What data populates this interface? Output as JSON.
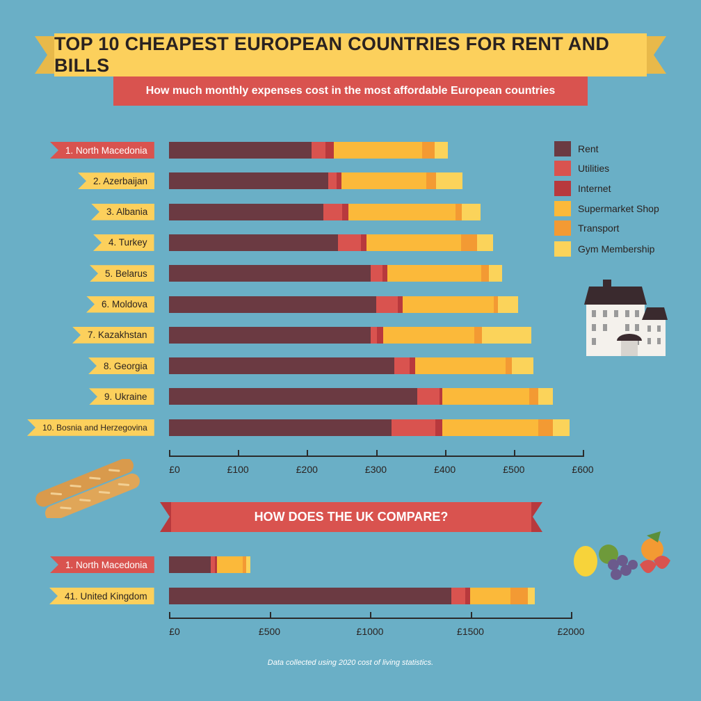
{
  "header": {
    "title": "TOP 10 CHEAPEST EUROPEAN COUNTRIES FOR RENT AND BILLS",
    "subtitle": "How much monthly expenses cost in the most affordable European countries"
  },
  "colors": {
    "background": "#6aafc6",
    "Rent": "#6b3a42",
    "Utilities": "#d9534f",
    "Internet": "#b8393d",
    "Supermarket Shop": "#fbb93a",
    "Transport": "#f39a33",
    "Gym Membership": "#fbd35a",
    "label_red": "#d9534f",
    "label_yellow": "#fcd05c"
  },
  "legend": {
    "position": "right",
    "items": [
      "Rent",
      "Utilities",
      "Internet",
      "Supermarket Shop",
      "Transport",
      "Gym Membership"
    ]
  },
  "section2": {
    "title": "HOW DOES THE UK COMPARE?"
  },
  "footer": "Data collected using 2020 cost of living statistics.",
  "decorations": [
    "house-illustration",
    "baguette-illustration",
    "fruit-illustration"
  ],
  "chart_data": [
    {
      "type": "bar",
      "orientation": "horizontal",
      "stacked": true,
      "categories": [
        "1. North Macedonia",
        "2. Azerbaijan",
        "3. Albania",
        "4. Turkey",
        "5. Belarus",
        "6. Moldova",
        "7. Kazakhstan",
        "8. Georgia",
        "9. Ukraine",
        "10. Bosnia and Herzegovina"
      ],
      "label_style": [
        "red",
        "yellow",
        "yellow",
        "yellow",
        "yellow",
        "yellow",
        "yellow",
        "yellow",
        "yellow",
        "yellow"
      ],
      "series": [
        {
          "name": "Rent",
          "values": [
            207,
            231,
            224,
            245,
            292,
            300,
            292,
            327,
            360,
            323
          ]
        },
        {
          "name": "Utilities",
          "values": [
            20,
            12,
            27,
            33,
            18,
            32,
            10,
            22,
            32,
            63
          ]
        },
        {
          "name": "Internet",
          "values": [
            12,
            7,
            9,
            8,
            7,
            7,
            9,
            8,
            4,
            10
          ]
        },
        {
          "name": "Supermarket Shop",
          "values": [
            128,
            123,
            155,
            138,
            136,
            132,
            132,
            131,
            126,
            139
          ]
        },
        {
          "name": "Transport",
          "values": [
            18,
            14,
            10,
            23,
            11,
            6,
            11,
            9,
            13,
            22
          ]
        },
        {
          "name": "Gym Membership",
          "values": [
            19,
            39,
            27,
            23,
            19,
            29,
            71,
            31,
            22,
            24
          ]
        }
      ],
      "xlim": [
        0,
        600
      ],
      "xticks": [
        0,
        100,
        200,
        300,
        400,
        500,
        600
      ],
      "xtick_labels": [
        "£0",
        "£100",
        "£200",
        "£300",
        "£400",
        "£500",
        "£600"
      ],
      "grid": false
    },
    {
      "type": "bar",
      "orientation": "horizontal",
      "stacked": true,
      "categories": [
        "1. North Macedonia",
        "41. United Kingdom"
      ],
      "label_style": [
        "red",
        "yellow"
      ],
      "series": [
        {
          "name": "Rent",
          "values": [
            207,
            1404
          ]
        },
        {
          "name": "Utilities",
          "values": [
            20,
            69
          ]
        },
        {
          "name": "Internet",
          "values": [
            12,
            24
          ]
        },
        {
          "name": "Supermarket Shop",
          "values": [
            128,
            201
          ]
        },
        {
          "name": "Transport",
          "values": [
            18,
            86
          ]
        },
        {
          "name": "Gym Membership",
          "values": [
            19,
            36
          ]
        }
      ],
      "xlim": [
        0,
        2000
      ],
      "xticks": [
        0,
        500,
        1000,
        1500,
        2000
      ],
      "xtick_labels": [
        "£0",
        "£500",
        "£1000",
        "£1500",
        "£2000"
      ],
      "grid": false
    }
  ]
}
